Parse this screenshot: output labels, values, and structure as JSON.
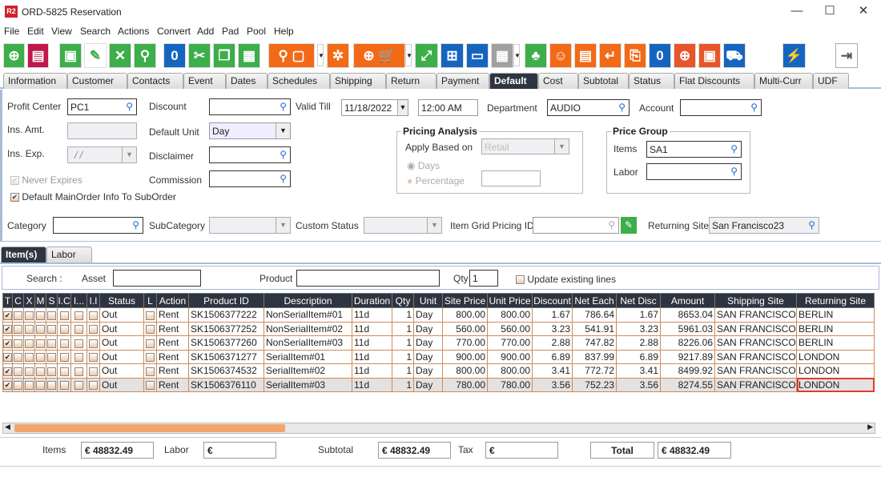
{
  "window": {
    "title": "ORD-5825 Reservation",
    "logo": "R2",
    "minimize": "—",
    "maximize": "☐",
    "close": "✕"
  },
  "menu": [
    "File",
    "Edit",
    "View",
    "Search",
    "Actions",
    "Convert",
    "Add",
    "Pad",
    "Pool",
    "Help"
  ],
  "toolbar": [
    "new-document",
    "print",
    "save",
    "edit",
    "delete",
    "search",
    "copy-zero",
    "cut",
    "copy",
    "paste",
    "search-box",
    "dropdown",
    "gears",
    "add-cart-po",
    "dropdown",
    "expand",
    "network",
    "chat",
    "calendar",
    "dropdown",
    "hierarchy",
    "smile",
    "scroll",
    "return",
    "box-return",
    "speech-zero",
    "coins-add",
    "safe",
    "truck-check",
    "lightning",
    "exit"
  ],
  "tabs": [
    "Information",
    "Customer",
    "Contacts",
    "Event",
    "Dates",
    "Schedules",
    "Shipping",
    "Return",
    "Payment",
    "Default",
    "Cost",
    "Subtotal",
    "Status",
    "Flat Discounts",
    "Multi-Curr",
    "UDF"
  ],
  "active_tab": "Default",
  "form": {
    "profit_center": {
      "label": "Profit Center",
      "value": "PC1"
    },
    "ins_amt": {
      "label": "Ins. Amt.",
      "value": ""
    },
    "ins_exp": {
      "label": "Ins. Exp.",
      "value": "/ /"
    },
    "never_expires": {
      "label": "Never Expires",
      "checked": true,
      "disabled": true
    },
    "default_main": {
      "label": "Default MainOrder Info To SubOrder",
      "checked": true
    },
    "discount": {
      "label": "Discount",
      "value": ""
    },
    "default_unit": {
      "label": "Default Unit",
      "value": "Day"
    },
    "disclaimer": {
      "label": "Disclaimer",
      "value": ""
    },
    "commission": {
      "label": "Commission",
      "value": ""
    },
    "valid_till": {
      "label": "Valid Till",
      "date": "11/18/2022",
      "time": "12:00 AM"
    },
    "department": {
      "label": "Department",
      "value": "AUDIO"
    },
    "account": {
      "label": "Account",
      "value": ""
    },
    "pricing": {
      "title": "Pricing Analysis",
      "apply_label": "Apply Based on",
      "apply_value": "Retail",
      "days": "Days",
      "percentage": "Percentage"
    },
    "price_group": {
      "title": "Price Group",
      "items_label": "Items",
      "items_value": "SA1",
      "labor_label": "Labor",
      "labor_value": ""
    },
    "category": {
      "label": "Category",
      "value": ""
    },
    "subcategory": {
      "label": "SubCategory",
      "value": ""
    },
    "custom_status": {
      "label": "Custom Status",
      "value": ""
    },
    "grid_pricing": {
      "label": "Item Grid Pricing ID",
      "value": ""
    },
    "returning_site": {
      "label": "Returning Site",
      "value": "San Francisco23"
    }
  },
  "subtabs": [
    "Item(s)",
    "Labor"
  ],
  "search": {
    "label": "Search :",
    "asset": "Asset",
    "product": "Product",
    "qty_label": "Qty",
    "qty": "1",
    "update": "Update existing lines"
  },
  "grid": {
    "columns": [
      "T",
      "C",
      "X",
      "M",
      "S",
      "I.C",
      "I...",
      "I.I",
      "Status",
      "L",
      "Action",
      "Product ID",
      "Description",
      "Duration",
      "Qty",
      "Unit",
      "Site Price",
      "Unit Price",
      "Discount",
      "Net Each",
      "Net Disc",
      "Amount",
      "Shipping Site",
      "Returning Site"
    ],
    "rows": [
      [
        "Out",
        "Rent",
        "SK1506377222",
        "NonSerialItem#01",
        "11d",
        "1",
        "Day",
        "800.00",
        "800.00",
        "1.67",
        "786.64",
        "1.67",
        "8653.04",
        "SAN FRANCISCO",
        "BERLIN"
      ],
      [
        "Out",
        "Rent",
        "SK1506377252",
        "NonSerialItem#02",
        "11d",
        "1",
        "Day",
        "560.00",
        "560.00",
        "3.23",
        "541.91",
        "3.23",
        "5961.03",
        "SAN FRANCISCO",
        "BERLIN"
      ],
      [
        "Out",
        "Rent",
        "SK1506377260",
        "NonSerialItem#03",
        "11d",
        "1",
        "Day",
        "770.00",
        "770.00",
        "2.88",
        "747.82",
        "2.88",
        "8226.06",
        "SAN FRANCISCO",
        "BERLIN"
      ],
      [
        "Out",
        "Rent",
        "SK1506371277",
        "SerialItem#01",
        "11d",
        "1",
        "Day",
        "900.00",
        "900.00",
        "6.89",
        "837.99",
        "6.89",
        "9217.89",
        "SAN FRANCISCO",
        "LONDON"
      ],
      [
        "Out",
        "Rent",
        "SK1506374532",
        "SerialItem#02",
        "11d",
        "1",
        "Day",
        "800.00",
        "800.00",
        "3.41",
        "772.72",
        "3.41",
        "8499.92",
        "SAN FRANCISCO",
        "LONDON"
      ],
      [
        "Out",
        "Rent",
        "SK1506376110",
        "SerialItem#03",
        "11d",
        "1",
        "Day",
        "780.00",
        "780.00",
        "3.56",
        "752.23",
        "3.56",
        "8274.55",
        "SAN FRANCISCO",
        "LONDON"
      ]
    ]
  },
  "totals": {
    "items_label": "Items",
    "items": "€ 48832.49",
    "labor_label": "Labor",
    "labor": "€",
    "subtotal_label": "Subtotal",
    "subtotal": "€ 48832.49",
    "tax_label": "Tax",
    "tax": "€",
    "total_label": "Total",
    "total": "€ 48832.49"
  }
}
